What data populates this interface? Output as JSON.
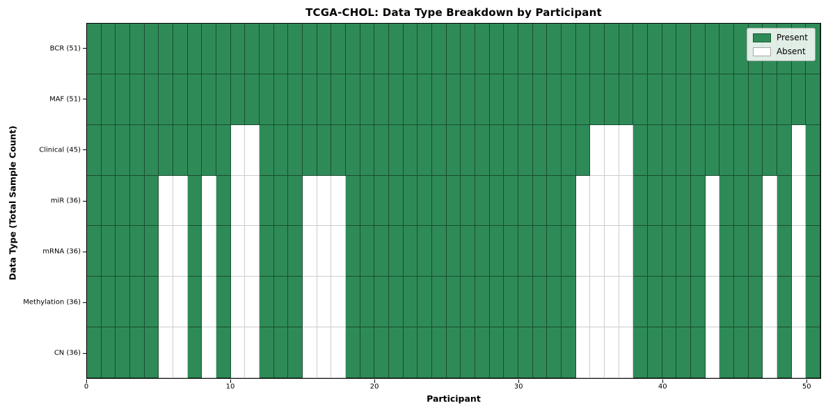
{
  "chart_data": {
    "type": "heatmap",
    "title": "TCGA-CHOL: Data Type Breakdown by Participant",
    "xlabel": "Participant",
    "ylabel": "Data Type (Total Sample Count)",
    "x_ticks": [
      0,
      10,
      20,
      30,
      40,
      50
    ],
    "n_participants": 51,
    "grid_lines": true,
    "legend_position": "upper right",
    "legend": [
      {
        "label": "Present",
        "color": "#2e8b57"
      },
      {
        "label": "Absent",
        "color": "#ffffff"
      }
    ],
    "rows": [
      {
        "label": "BCR (51)",
        "total_present": 51,
        "absent_columns": []
      },
      {
        "label": "MAF (51)",
        "total_present": 51,
        "absent_columns": []
      },
      {
        "label": "Clinical (45)",
        "total_present": 45,
        "absent_columns": [
          10,
          11,
          35,
          36,
          37,
          49
        ]
      },
      {
        "label": "miR (36)",
        "total_present": 36,
        "absent_columns": [
          5,
          6,
          8,
          10,
          11,
          15,
          16,
          17,
          34,
          35,
          36,
          37,
          43,
          47,
          49
        ]
      },
      {
        "label": "mRNA (36)",
        "total_present": 36,
        "absent_columns": [
          5,
          6,
          8,
          10,
          11,
          15,
          16,
          17,
          34,
          35,
          36,
          37,
          43,
          47,
          49
        ]
      },
      {
        "label": "Methylation (36)",
        "total_present": 36,
        "absent_columns": [
          5,
          6,
          8,
          10,
          11,
          15,
          16,
          17,
          34,
          35,
          36,
          37,
          43,
          47,
          49
        ]
      },
      {
        "label": "CN (36)",
        "total_present": 36,
        "absent_columns": [
          5,
          6,
          8,
          10,
          11,
          15,
          16,
          17,
          34,
          35,
          36,
          37,
          43,
          47,
          49
        ]
      }
    ]
  },
  "colors": {
    "present": "#2e8b57",
    "absent": "#ffffff",
    "axis": "#000000",
    "legend_border": "#b0b0b0"
  }
}
